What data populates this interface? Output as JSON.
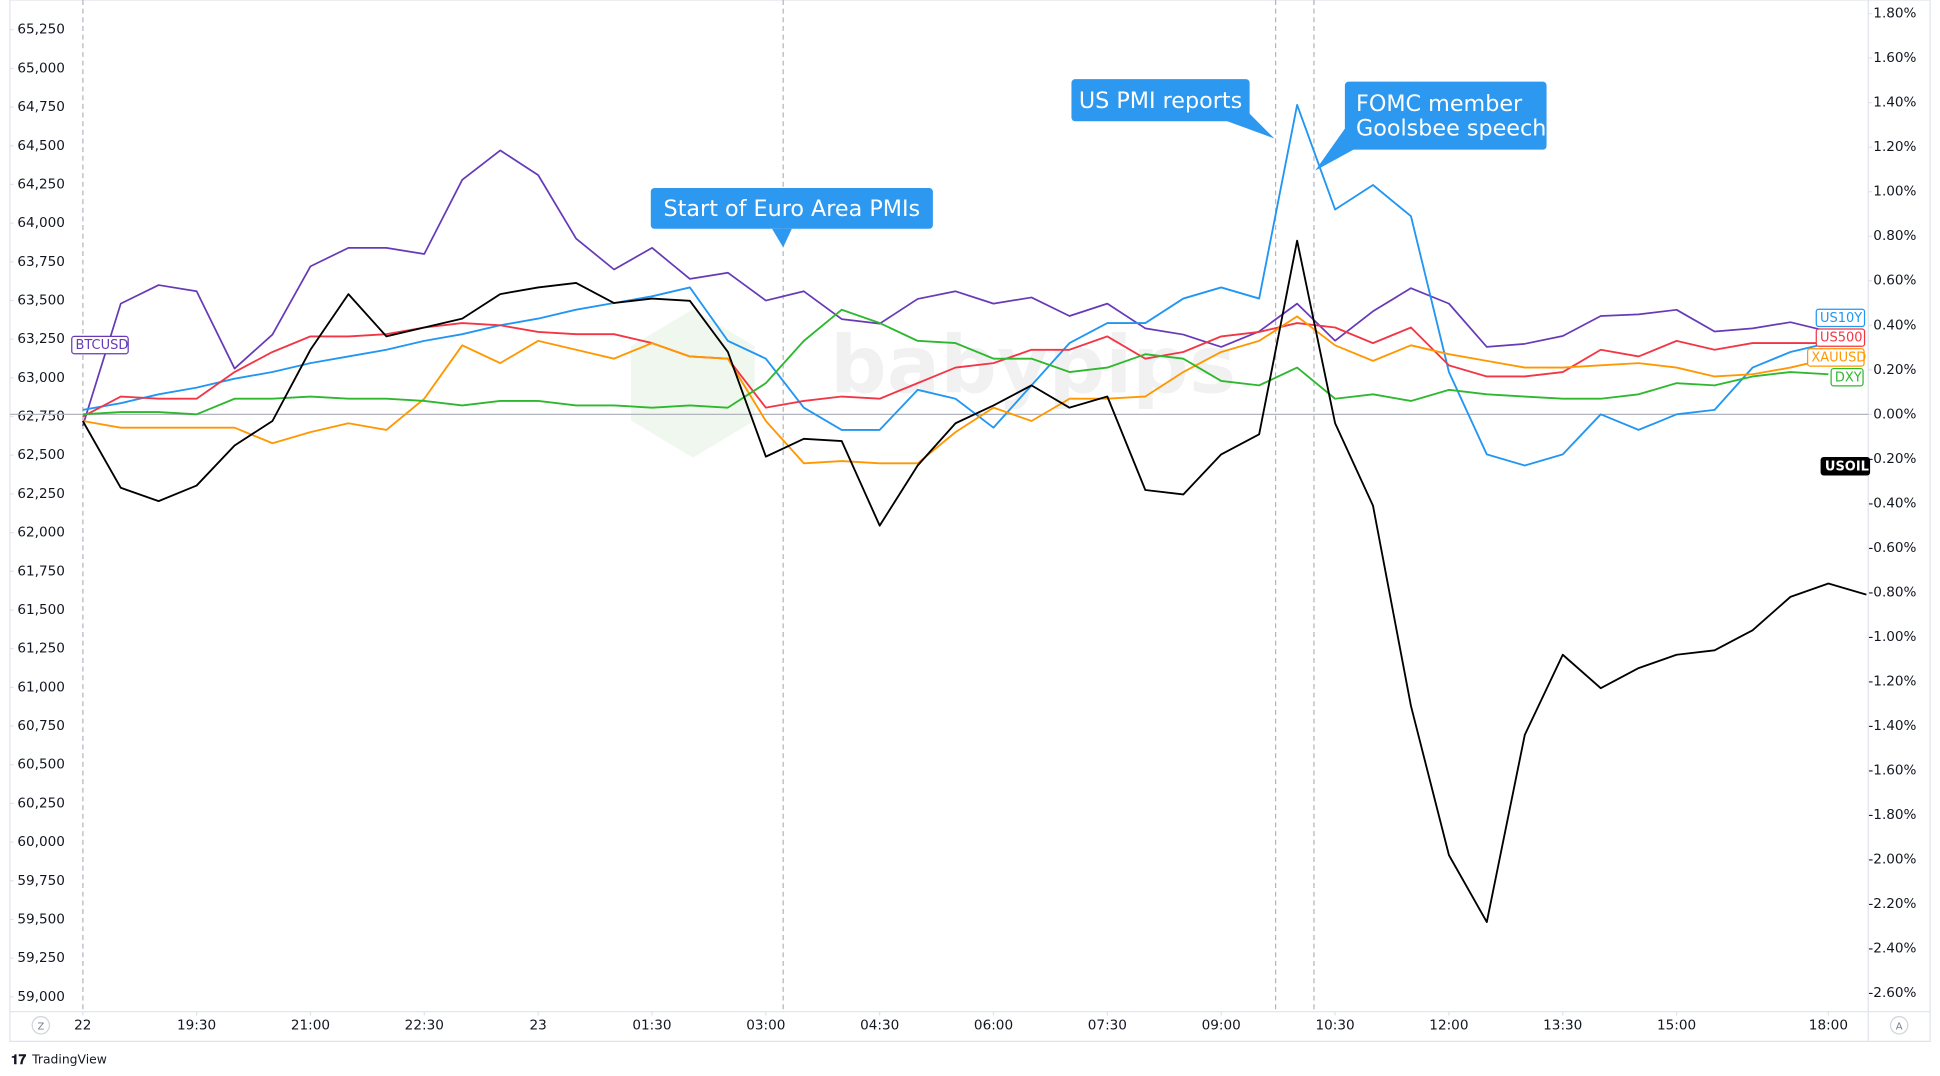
{
  "chart_data": {
    "type": "line",
    "watermark": "babypips",
    "xlim": [
      -1.92,
      47.05
    ],
    "xticks": [
      {
        "value": 0,
        "label": "22"
      },
      {
        "value": 3,
        "label": "19:30"
      },
      {
        "value": 6,
        "label": "21:00"
      },
      {
        "value": 9,
        "label": "22:30"
      },
      {
        "value": 12,
        "label": "23"
      },
      {
        "value": 15,
        "label": "01:30"
      },
      {
        "value": 18,
        "label": "03:00"
      },
      {
        "value": 21,
        "label": "04:30"
      },
      {
        "value": 24,
        "label": "06:00"
      },
      {
        "value": 27,
        "label": "07:30"
      },
      {
        "value": 30,
        "label": "09:00"
      },
      {
        "value": 33,
        "label": "10:30"
      },
      {
        "value": 36,
        "label": "12:00"
      },
      {
        "value": 39,
        "label": "13:30"
      },
      {
        "value": 42,
        "label": "15:00"
      },
      {
        "value": 46,
        "label": "18:00"
      }
    ],
    "ylim": [
      58904,
      65442
    ],
    "yticks": [
      {
        "value": 65250,
        "label": "65,250"
      },
      {
        "value": 65000,
        "label": "65,000"
      },
      {
        "value": 64750,
        "label": "64,750"
      },
      {
        "value": 64500,
        "label": "64,500"
      },
      {
        "value": 64250,
        "label": "64,250"
      },
      {
        "value": 64000,
        "label": "64,000"
      },
      {
        "value": 63750,
        "label": "63,750"
      },
      {
        "value": 63500,
        "label": "63,500"
      },
      {
        "value": 63250,
        "label": "63,250"
      },
      {
        "value": 63000,
        "label": "63,000"
      },
      {
        "value": 62750,
        "label": "62,750"
      },
      {
        "value": 62500,
        "label": "62,500"
      },
      {
        "value": 62250,
        "label": "62,250"
      },
      {
        "value": 62000,
        "label": "62,000"
      },
      {
        "value": 61750,
        "label": "61,750"
      },
      {
        "value": 61500,
        "label": "61,500"
      },
      {
        "value": 61250,
        "label": "61,250"
      },
      {
        "value": 61000,
        "label": "61,000"
      },
      {
        "value": 60750,
        "label": "60,750"
      },
      {
        "value": 60500,
        "label": "60,500"
      },
      {
        "value": 60250,
        "label": "60,250"
      },
      {
        "value": 60000,
        "label": "60,000"
      },
      {
        "value": 59750,
        "label": "59,750"
      },
      {
        "value": 59500,
        "label": "59,500"
      },
      {
        "value": 59250,
        "label": "59,250"
      },
      {
        "value": 59000,
        "label": "59,000"
      }
    ],
    "y2lim": [
      -2.683,
      1.861
    ],
    "y2ticks": [
      {
        "value": 1.8,
        "label": "1.80%"
      },
      {
        "value": 1.6,
        "label": "1.60%"
      },
      {
        "value": 1.4,
        "label": "1.40%"
      },
      {
        "value": 1.2,
        "label": "1.20%"
      },
      {
        "value": 1.0,
        "label": "1.00%"
      },
      {
        "value": 0.8,
        "label": "0.80%"
      },
      {
        "value": 0.6,
        "label": "0.60%"
      },
      {
        "value": 0.4,
        "label": "0.40%"
      },
      {
        "value": 0.2,
        "label": "0.20%"
      },
      {
        "value": 0,
        "label": "0.00%"
      },
      {
        "value": -0.2,
        "label": "-0.20%"
      },
      {
        "value": -0.4,
        "label": "-0.40%"
      },
      {
        "value": -0.6,
        "label": "-0.60%"
      },
      {
        "value": -0.8,
        "label": "-0.80%"
      },
      {
        "value": -1.0,
        "label": "-1.00%"
      },
      {
        "value": -1.2,
        "label": "-1.20%"
      },
      {
        "value": -1.4,
        "label": "-1.40%"
      },
      {
        "value": -1.6,
        "label": "-1.60%"
      },
      {
        "value": -1.8,
        "label": "-1.80%"
      },
      {
        "value": -2.0,
        "label": "-2.00%"
      },
      {
        "value": -2.2,
        "label": "-2.20%"
      },
      {
        "value": -2.4,
        "label": "-2.40%"
      },
      {
        "value": -2.6,
        "label": "-2.60%"
      }
    ],
    "series": [
      {
        "name": "BTCUSD",
        "color": "#673ab7",
        "axis": "y",
        "values": [
          62690,
          63480,
          63600,
          63560,
          63060,
          63280,
          63720,
          63840,
          63840,
          63800,
          64280,
          64470,
          64310,
          63900,
          63700,
          63840,
          63640,
          63680,
          63500,
          63560,
          63380,
          63350,
          63510,
          63560,
          63480,
          63520,
          63400,
          63480,
          63320,
          63280,
          63200,
          63300,
          63480,
          63240,
          63430,
          63580,
          63480,
          63200,
          63220,
          63270,
          63400,
          63410,
          63440,
          63300,
          63320,
          63360,
          63300,
          null
        ]
      },
      {
        "name": "US10Y",
        "color": "#2196f3",
        "axis": "y2",
        "values": [
          0.02,
          0.05,
          0.09,
          0.12,
          0.16,
          0.19,
          0.23,
          0.26,
          0.29,
          0.33,
          0.36,
          0.4,
          0.43,
          0.47,
          0.5,
          0.53,
          0.57,
          0.33,
          0.25,
          0.03,
          -0.07,
          -0.07,
          0.11,
          0.07,
          -0.06,
          0.13,
          0.32,
          0.41,
          0.41,
          0.52,
          0.57,
          0.52,
          1.39,
          0.92,
          1.03,
          0.89,
          0.19,
          -0.18,
          -0.23,
          -0.18,
          0.0,
          -0.07,
          0.0,
          0.02,
          0.21,
          0.28,
          0.32,
          null
        ]
      },
      {
        "name": "US500",
        "color": "#f23645",
        "axis": "y2",
        "values": [
          -0.01,
          0.08,
          0.07,
          0.07,
          0.19,
          0.28,
          0.35,
          0.35,
          0.36,
          0.39,
          0.41,
          0.4,
          0.37,
          0.36,
          0.36,
          0.32,
          0.26,
          0.25,
          0.03,
          0.06,
          0.08,
          0.07,
          0.14,
          0.21,
          0.23,
          0.29,
          0.29,
          0.35,
          0.25,
          0.28,
          0.35,
          0.37,
          0.41,
          0.39,
          0.32,
          0.39,
          0.22,
          0.17,
          0.17,
          0.19,
          0.29,
          0.26,
          0.33,
          0.29,
          0.32,
          0.32,
          0.32,
          null
        ]
      },
      {
        "name": "XAUUSD",
        "color": "#ff9800",
        "axis": "y2",
        "values": [
          -0.03,
          -0.06,
          -0.06,
          -0.06,
          -0.06,
          -0.13,
          -0.08,
          -0.04,
          -0.07,
          0.07,
          0.31,
          0.23,
          0.33,
          0.29,
          0.25,
          0.32,
          0.26,
          0.25,
          -0.03,
          -0.22,
          -0.21,
          -0.22,
          -0.22,
          -0.08,
          0.03,
          -0.03,
          0.07,
          0.07,
          0.08,
          0.19,
          0.28,
          0.33,
          0.44,
          0.31,
          0.24,
          0.31,
          0.27,
          0.24,
          0.21,
          0.21,
          0.22,
          0.23,
          0.21,
          0.17,
          0.18,
          0.21,
          0.25,
          null
        ]
      },
      {
        "name": "DXY",
        "color": "#2eb82e",
        "axis": "y2",
        "values": [
          0.0,
          0.01,
          0.01,
          0.0,
          0.07,
          0.07,
          0.08,
          0.07,
          0.07,
          0.06,
          0.04,
          0.06,
          0.06,
          0.04,
          0.04,
          0.03,
          0.04,
          0.03,
          0.14,
          0.33,
          0.47,
          0.41,
          0.33,
          0.32,
          0.25,
          0.25,
          0.19,
          0.21,
          0.27,
          0.25,
          0.15,
          0.13,
          0.21,
          0.07,
          0.09,
          0.06,
          0.11,
          0.09,
          0.08,
          0.07,
          0.07,
          0.09,
          0.14,
          0.13,
          0.17,
          0.19,
          0.18,
          null
        ]
      },
      {
        "name": "USOIL",
        "color": "#000000",
        "axis": "y2",
        "values": [
          -0.03,
          -0.33,
          -0.39,
          -0.32,
          -0.14,
          -0.03,
          0.29,
          0.54,
          0.35,
          0.39,
          0.43,
          0.54,
          0.57,
          0.59,
          0.5,
          0.52,
          0.51,
          0.28,
          -0.19,
          -0.11,
          -0.12,
          -0.5,
          -0.23,
          -0.04,
          0.04,
          0.13,
          0.03,
          0.08,
          -0.34,
          -0.36,
          -0.18,
          -0.09,
          0.78,
          -0.04,
          -0.41,
          -1.31,
          -1.98,
          -2.28,
          -1.44,
          -1.08,
          -1.23,
          -1.14,
          -1.08,
          -1.06,
          -0.97,
          -0.82,
          -0.76,
          -0.81
        ]
      }
    ],
    "annotations": [
      {
        "lines": [
          "Start of Euro Area PMIs"
        ]
      },
      {
        "lines": [
          "US PMI reports"
        ]
      },
      {
        "lines": [
          "FOMC member",
          "Goolsbee speech"
        ]
      }
    ]
  },
  "ui": {
    "buttons": [
      "Z",
      "A"
    ],
    "brand": "TradingView"
  }
}
